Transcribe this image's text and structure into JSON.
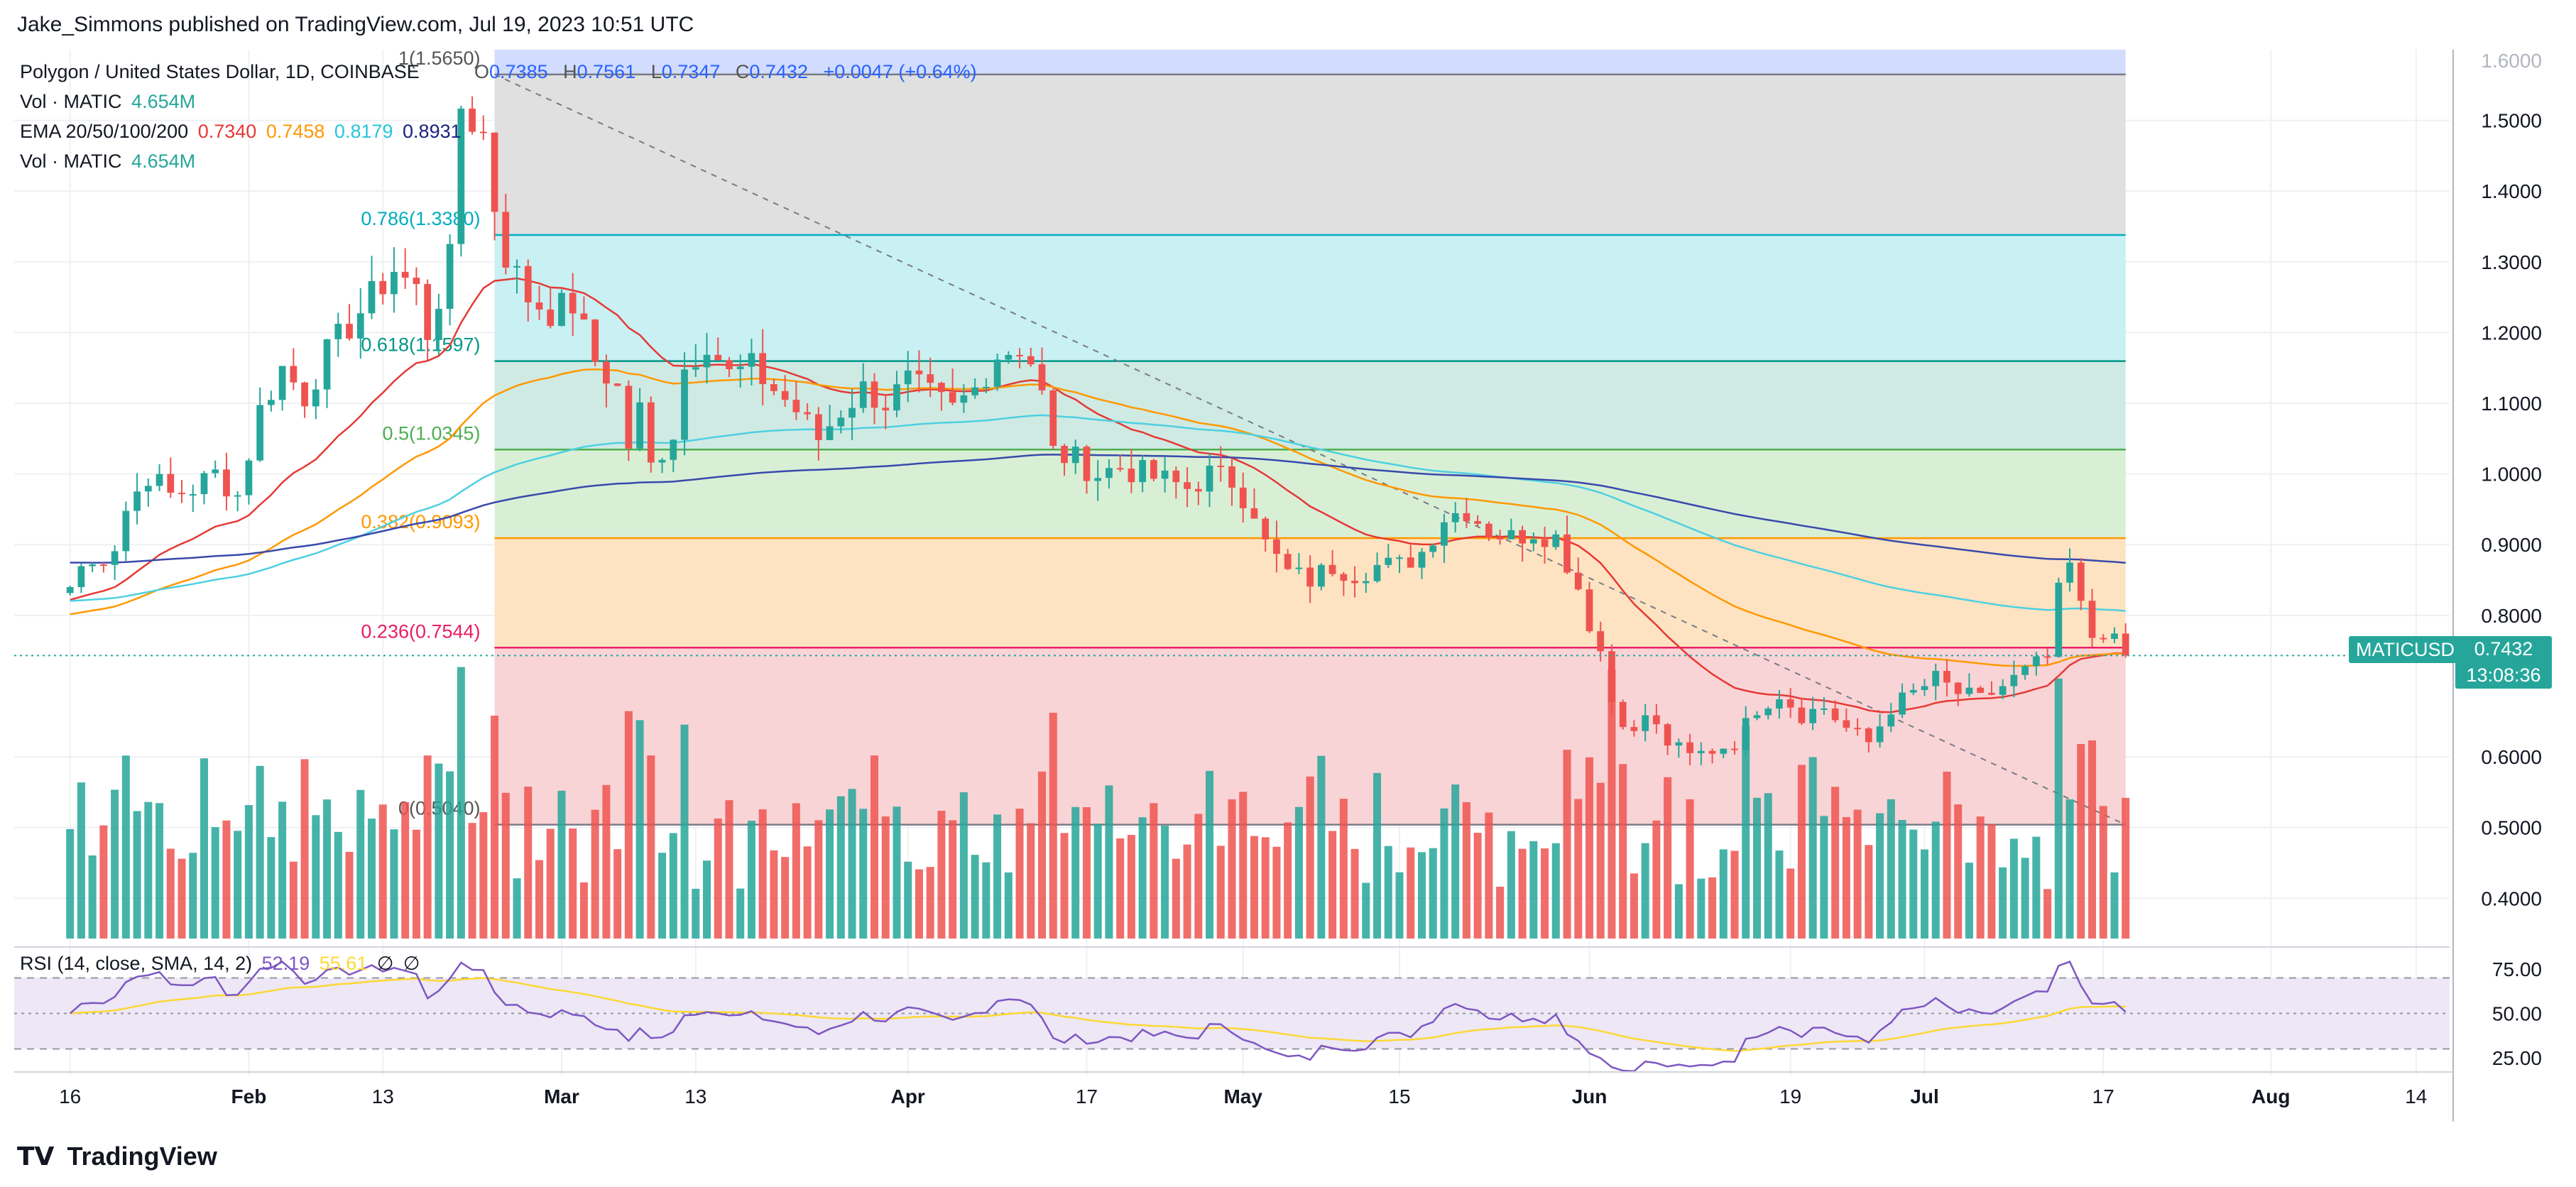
{
  "publisher_line": "Jake_Simmons published on TradingView.com, Jul 19, 2023 10:51 UTC",
  "brand": "TradingView",
  "legend": {
    "symbol_line": "Polygon / United States Dollar, 1D, COINBASE",
    "ohlc": {
      "o_label": "O",
      "o": "0.7385",
      "h_label": "H",
      "h": "0.7561",
      "l_label": "L",
      "l": "0.7347",
      "c_label": "C",
      "c": "0.7432",
      "chg": "+0.0047 (+0.64%)"
    },
    "vol1_label": "Vol · MATIC",
    "vol1_value": "4.654M",
    "ema_label": "EMA 20/50/100/200",
    "ema_values": [
      "0.7340",
      "0.7458",
      "0.8179",
      "0.8931"
    ],
    "vol2_label": "Vol · MATIC",
    "vol2_value": "4.654M",
    "rsi_label": "RSI (14, close, SMA, 14, 2)",
    "rsi_value": "52.19",
    "rsi_sma_value": "55.61",
    "rsi_extra": [
      "∅",
      "∅"
    ]
  },
  "price_tag": {
    "symbol": "MATICUSD",
    "price": "0.7432",
    "countdown": "13:08:36"
  },
  "colors": {
    "up": "#26a69a",
    "down": "#ef5350",
    "ema20": "#e53935",
    "ema50": "#ff9800",
    "ema100": "#4dd0e1",
    "ema200": "#3949ab",
    "rsi": "#7e57c2",
    "rsi_sma": "#fdd835"
  },
  "chart_data": {
    "type": "candlestick",
    "title": "Polygon / United States Dollar, 1D, COINBASE",
    "y_axis_ticks": [
      "1.5000",
      "1.4000",
      "1.3000",
      "1.2000",
      "1.1000",
      "1.0000",
      "0.9000",
      "0.8000",
      "0.6000",
      "0.5000",
      "0.4000"
    ],
    "y_axis_top_partial": "1.6000",
    "ylim": [
      0.33,
      1.6
    ],
    "x_axis_ticks": [
      "16",
      "Feb",
      "13",
      "Mar",
      "13",
      "Apr",
      "17",
      "May",
      "15",
      "Jun",
      "19",
      "Jul",
      "17",
      "Aug",
      "14"
    ],
    "x_tick_days": [
      15,
      31,
      43,
      59,
      71,
      90,
      106,
      120,
      134,
      151,
      169,
      181,
      197,
      212,
      225
    ],
    "last_day": 199,
    "fib_levels": [
      {
        "label": "1(1.5650)",
        "value": 1.565
      },
      {
        "label": "0.786(1.3380)",
        "value": 1.338
      },
      {
        "label": "0.618(1.1597)",
        "value": 1.1597
      },
      {
        "label": "0.5(1.0345)",
        "value": 1.0345
      },
      {
        "label": "0.382(0.9093)",
        "value": 0.9093
      },
      {
        "label": "0.236(0.7544)",
        "value": 0.7544
      },
      {
        "label": "0(0.5040)",
        "value": 0.504
      }
    ],
    "fib_start_day": 53,
    "trendline": {
      "from": [
        53,
        1.565
      ],
      "to": [
        199,
        0.504
      ]
    },
    "closes_keypoints": [
      [
        15,
        0.84
      ],
      [
        16,
        0.87
      ],
      [
        17,
        0.87
      ],
      [
        19,
        0.9
      ],
      [
        20,
        0.95
      ],
      [
        22,
        1.0
      ],
      [
        24,
        0.97
      ],
      [
        26,
        0.98
      ],
      [
        28,
        1.0
      ],
      [
        30,
        0.97
      ],
      [
        32,
        1.09
      ],
      [
        34,
        1.15
      ],
      [
        36,
        1.11
      ],
      [
        38,
        1.17
      ],
      [
        40,
        1.21
      ],
      [
        42,
        1.25
      ],
      [
        44,
        1.29
      ],
      [
        46,
        1.26
      ],
      [
        47,
        1.2
      ],
      [
        49,
        1.3
      ],
      [
        50,
        1.52
      ],
      [
        52,
        1.48
      ],
      [
        53,
        1.38
      ],
      [
        54,
        1.31
      ],
      [
        56,
        1.25
      ],
      [
        58,
        1.23
      ],
      [
        60,
        1.24
      ],
      [
        62,
        1.16
      ],
      [
        64,
        1.12
      ],
      [
        65,
        1.04
      ],
      [
        66,
        1.09
      ],
      [
        67,
        1.01
      ],
      [
        69,
        1.06
      ],
      [
        70,
        1.15
      ],
      [
        72,
        1.19
      ],
      [
        74,
        1.14
      ],
      [
        76,
        1.15
      ],
      [
        78,
        1.12
      ],
      [
        80,
        1.09
      ],
      [
        82,
        1.05
      ],
      [
        84,
        1.09
      ],
      [
        86,
        1.12
      ],
      [
        88,
        1.1
      ],
      [
        90,
        1.13
      ],
      [
        92,
        1.11
      ],
      [
        94,
        1.09
      ],
      [
        96,
        1.12
      ],
      [
        98,
        1.17
      ],
      [
        100,
        1.18
      ],
      [
        101,
        1.16
      ],
      [
        102,
        1.11
      ],
      [
        103,
        1.03
      ],
      [
        105,
        1.02
      ],
      [
        107,
        1.0
      ],
      [
        109,
        1.01
      ],
      [
        111,
        1.0
      ],
      [
        113,
        0.99
      ],
      [
        115,
        0.98
      ],
      [
        117,
        1.0
      ],
      [
        119,
        0.99
      ],
      [
        121,
        0.95
      ],
      [
        122,
        0.9
      ],
      [
        124,
        0.86
      ],
      [
        126,
        0.85
      ],
      [
        128,
        0.87
      ],
      [
        130,
        0.86
      ],
      [
        132,
        0.87
      ],
      [
        134,
        0.87
      ],
      [
        136,
        0.89
      ],
      [
        138,
        0.94
      ],
      [
        140,
        0.95
      ],
      [
        142,
        0.92
      ],
      [
        144,
        0.91
      ],
      [
        146,
        0.92
      ],
      [
        148,
        0.91
      ],
      [
        150,
        0.84
      ],
      [
        151,
        0.79
      ],
      [
        152,
        0.75
      ],
      [
        153,
        0.68
      ],
      [
        155,
        0.63
      ],
      [
        156,
        0.66
      ],
      [
        158,
        0.62
      ],
      [
        160,
        0.6
      ],
      [
        162,
        0.61
      ],
      [
        164,
        0.62
      ],
      [
        166,
        0.67
      ],
      [
        168,
        0.69
      ],
      [
        170,
        0.66
      ],
      [
        172,
        0.67
      ],
      [
        174,
        0.64
      ],
      [
        176,
        0.62
      ],
      [
        178,
        0.67
      ],
      [
        180,
        0.69
      ],
      [
        182,
        0.71
      ],
      [
        184,
        0.69
      ],
      [
        186,
        0.68
      ],
      [
        188,
        0.7
      ],
      [
        190,
        0.72
      ],
      [
        192,
        0.74
      ],
      [
        193,
        0.83
      ],
      [
        194,
        0.87
      ],
      [
        195,
        0.81
      ],
      [
        196,
        0.77
      ],
      [
        197,
        0.78
      ],
      [
        198,
        0.76
      ],
      [
        199,
        0.7432
      ]
    ],
    "ema_series": [
      {
        "name": "EMA 20",
        "last": 0.734
      },
      {
        "name": "EMA 50",
        "last": 0.7458
      },
      {
        "name": "EMA 100",
        "last": 0.8179
      },
      {
        "name": "EMA 200",
        "last": 0.8931
      }
    ],
    "rsi_axis_ticks": [
      "75.00",
      "50.00",
      "25.00"
    ],
    "rsi_bands": [
      70,
      50,
      30
    ]
  }
}
